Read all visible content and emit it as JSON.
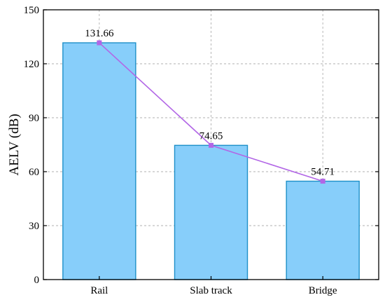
{
  "chart_data": {
    "type": "bar",
    "categories": [
      "Rail",
      "Slab track",
      "Bridge"
    ],
    "values": [
      131.66,
      74.65,
      54.71
    ],
    "value_labels": [
      "131.66",
      "74.65",
      "54.71"
    ],
    "title": "",
    "xlabel": "",
    "ylabel": "AELV (dB)",
    "ylim": [
      0,
      150
    ],
    "yticks": [
      0,
      30,
      60,
      90,
      120,
      150
    ],
    "grid": true,
    "bar_color": "#87CEFA",
    "bar_edge_color": "#1E90C8",
    "line_overlay": {
      "color": "#B266E6",
      "marker": "square"
    }
  }
}
